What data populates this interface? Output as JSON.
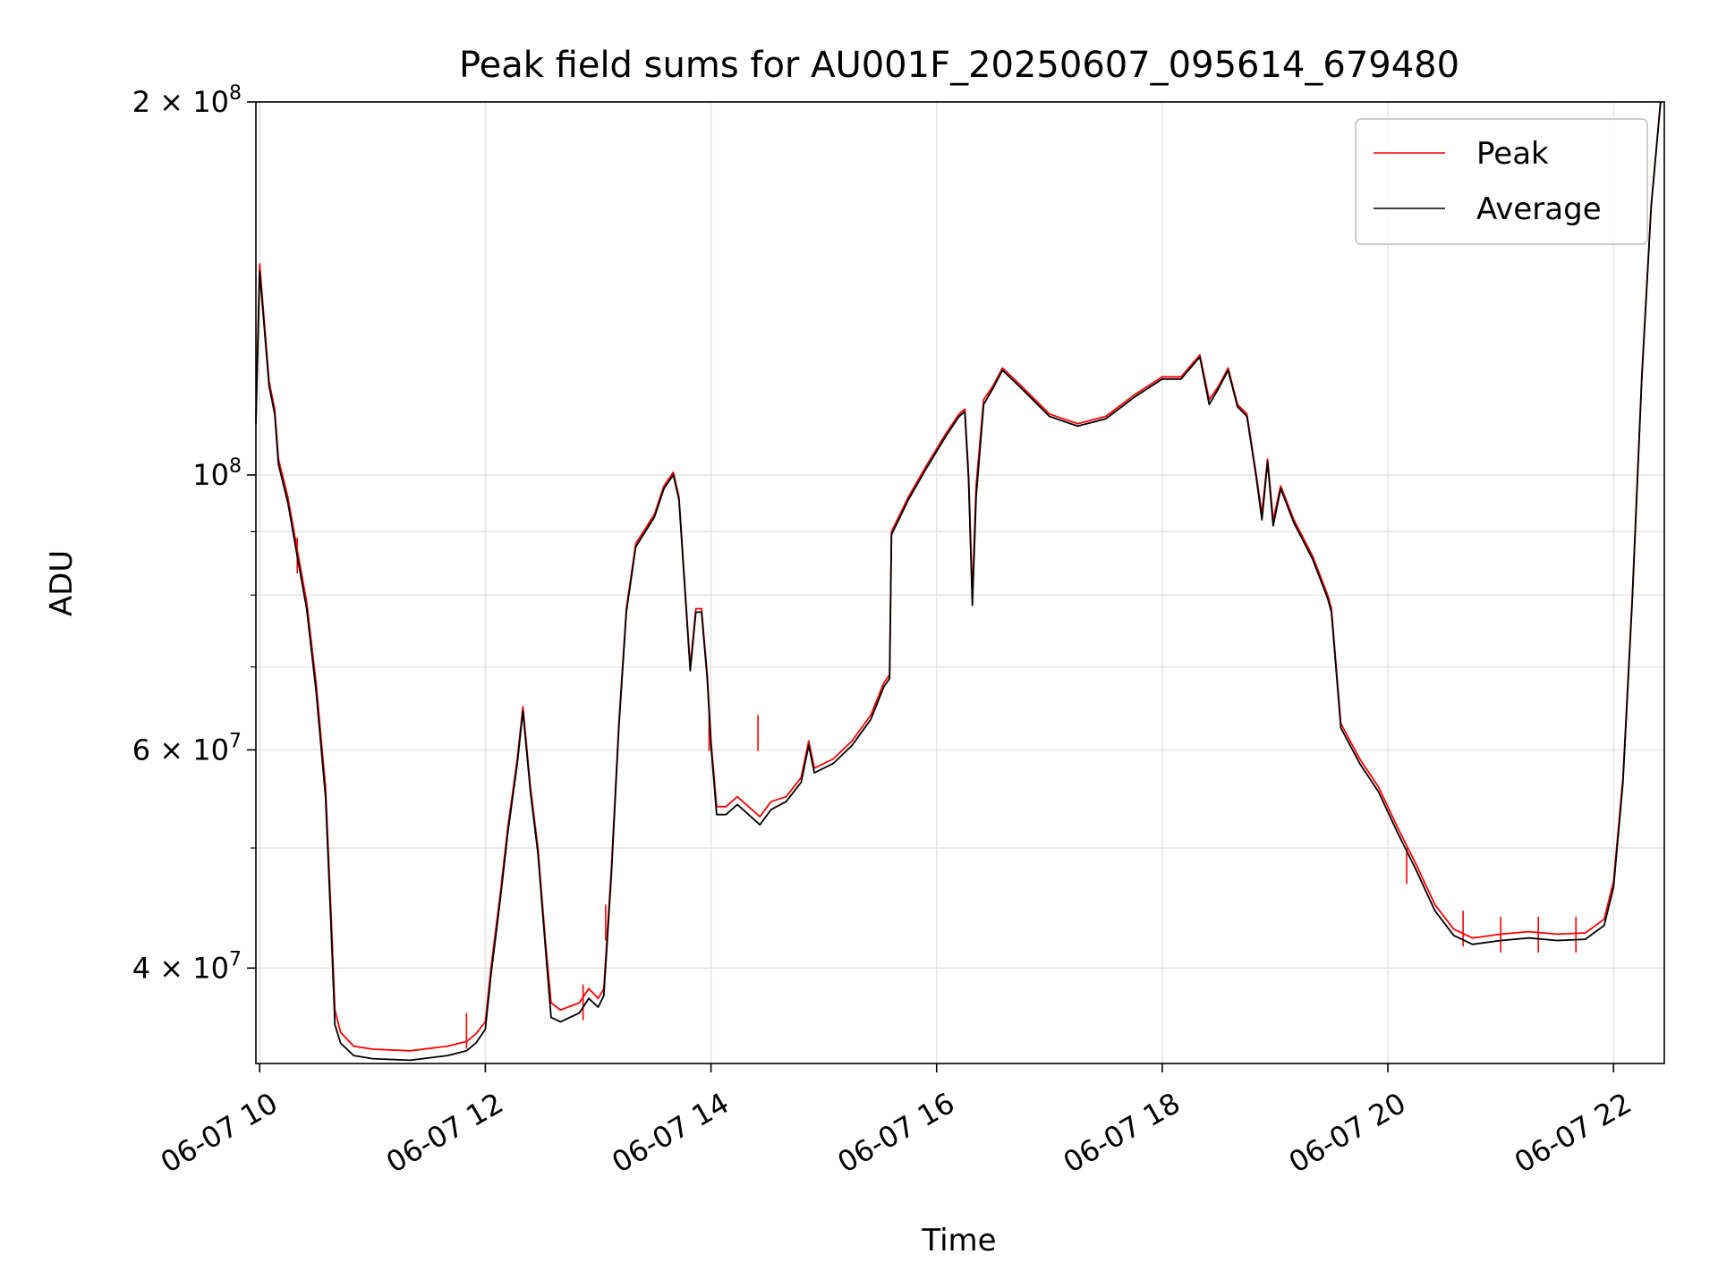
{
  "chart_data": {
    "type": "line",
    "title": "Peak field sums for AU001F_20250607_095614_679480",
    "xlabel": "Time",
    "ylabel": "ADU",
    "x_scale": "time",
    "y_scale": "log",
    "xlim": [
      "06-07 09:58",
      "06-07 22:27"
    ],
    "ylim": [
      33500000,
      200000000
    ],
    "grid": true,
    "legend_position": "top-right",
    "x_ticks": [
      {
        "time": "06-07 10:00",
        "label": "06-07 10"
      },
      {
        "time": "06-07 12:00",
        "label": "06-07 12"
      },
      {
        "time": "06-07 14:00",
        "label": "06-07 14"
      },
      {
        "time": "06-07 16:00",
        "label": "06-07 16"
      },
      {
        "time": "06-07 18:00",
        "label": "06-07 18"
      },
      {
        "time": "06-07 20:00",
        "label": "06-07 20"
      },
      {
        "time": "06-07 22:00",
        "label": "06-07 22"
      }
    ],
    "y_major_ticks": [
      {
        "value": 40000000,
        "mantissa": "4",
        "exp": "7"
      },
      {
        "value": 60000000,
        "mantissa": "6",
        "exp": "7"
      },
      {
        "value": 100000000,
        "mantissa": "",
        "exp": "8"
      },
      {
        "value": 200000000,
        "mantissa": "2",
        "exp": "8"
      }
    ],
    "y_minor_ticks": [
      50000000,
      70000000,
      80000000,
      90000000
    ],
    "series": [
      {
        "name": "Peak",
        "color": "#ff0000",
        "points": [
          [
            "06-07 09:58",
            111000000
          ],
          [
            "06-07 10:00",
            148000000
          ],
          [
            "06-07 10:05",
            119000000
          ],
          [
            "06-07 10:08",
            113000000
          ],
          [
            "06-07 10:10",
            103000000
          ],
          [
            "06-07 10:15",
            96000000
          ],
          [
            "06-07 10:20",
            87000000
          ],
          [
            "06-07 10:25",
            79000000
          ],
          [
            "06-07 10:30",
            68000000
          ],
          [
            "06-07 10:35",
            56000000
          ],
          [
            "06-07 10:38",
            44000000
          ],
          [
            "06-07 10:40",
            37000000
          ],
          [
            "06-07 10:43",
            35500000
          ],
          [
            "06-07 10:50",
            34600000
          ],
          [
            "06-07 11:00",
            34400000
          ],
          [
            "06-07 11:20",
            34300000
          ],
          [
            "06-07 11:40",
            34600000
          ],
          [
            "06-07 11:50",
            34900000
          ],
          [
            "06-07 11:55",
            35400000
          ],
          [
            "06-07 12:00",
            36200000
          ],
          [
            "06-07 12:03",
            40000000
          ],
          [
            "06-07 12:08",
            46000000
          ],
          [
            "06-07 12:12",
            52000000
          ],
          [
            "06-07 12:17",
            59000000
          ],
          [
            "06-07 12:20",
            65000000
          ],
          [
            "06-07 12:24",
            56000000
          ],
          [
            "06-07 12:28",
            50000000
          ],
          [
            "06-07 12:32",
            42000000
          ],
          [
            "06-07 12:35",
            37500000
          ],
          [
            "06-07 12:40",
            37000000
          ],
          [
            "06-07 12:50",
            37500000
          ],
          [
            "06-07 12:55",
            38500000
          ],
          [
            "06-07 13:00",
            37800000
          ],
          [
            "06-07 13:03",
            38500000
          ],
          [
            "06-07 13:07",
            48000000
          ],
          [
            "06-07 13:11",
            63000000
          ],
          [
            "06-07 13:15",
            78000000
          ],
          [
            "06-07 13:20",
            88000000
          ],
          [
            "06-07 13:30",
            93000000
          ],
          [
            "06-07 13:35",
            98000000
          ],
          [
            "06-07 13:40",
            100500000
          ],
          [
            "06-07 13:43",
            96000000
          ],
          [
            "06-07 13:46",
            82000000
          ],
          [
            "06-07 13:49",
            70000000
          ],
          [
            "06-07 13:52",
            78000000
          ],
          [
            "06-07 13:55",
            78000000
          ],
          [
            "06-07 13:58",
            69000000
          ],
          [
            "06-07 14:00",
            61000000
          ],
          [
            "06-07 14:03",
            54000000
          ],
          [
            "06-07 14:08",
            54000000
          ],
          [
            "06-07 14:14",
            55000000
          ],
          [
            "06-07 14:20",
            54000000
          ],
          [
            "06-07 14:26",
            53000000
          ],
          [
            "06-07 14:32",
            54500000
          ],
          [
            "06-07 14:40",
            55000000
          ],
          [
            "06-07 14:48",
            57000000
          ],
          [
            "06-07 14:52",
            61000000
          ],
          [
            "06-07 14:55",
            58000000
          ],
          [
            "06-07 15:05",
            59000000
          ],
          [
            "06-07 15:15",
            61000000
          ],
          [
            "06-07 15:25",
            64000000
          ],
          [
            "06-07 15:32",
            68000000
          ],
          [
            "06-07 15:35",
            69000000
          ],
          [
            "06-07 15:36",
            90000000
          ],
          [
            "06-07 15:45",
            96000000
          ],
          [
            "06-07 15:55",
            102000000
          ],
          [
            "06-07 16:05",
            108000000
          ],
          [
            "06-07 16:12",
            112000000
          ],
          [
            "06-07 16:15",
            113000000
          ],
          [
            "06-07 16:17",
            100000000
          ],
          [
            "06-07 16:19",
            80000000
          ],
          [
            "06-07 16:21",
            98000000
          ],
          [
            "06-07 16:25",
            115000000
          ],
          [
            "06-07 16:30",
            118000000
          ],
          [
            "06-07 16:35",
            122000000
          ],
          [
            "06-07 16:45",
            118000000
          ],
          [
            "06-07 17:00",
            112000000
          ],
          [
            "06-07 17:15",
            110000000
          ],
          [
            "06-07 17:30",
            111500000
          ],
          [
            "06-07 17:45",
            116000000
          ],
          [
            "06-07 18:00",
            120000000
          ],
          [
            "06-07 18:10",
            120000000
          ],
          [
            "06-07 18:20",
            125000000
          ],
          [
            "06-07 18:25",
            115000000
          ],
          [
            "06-07 18:30",
            118000000
          ],
          [
            "06-07 18:35",
            122000000
          ],
          [
            "06-07 18:40",
            114000000
          ],
          [
            "06-07 18:45",
            112000000
          ],
          [
            "06-07 18:50",
            100000000
          ],
          [
            "06-07 18:53",
            93000000
          ],
          [
            "06-07 18:56",
            103000000
          ],
          [
            "06-07 18:59",
            92000000
          ],
          [
            "06-07 19:03",
            98000000
          ],
          [
            "06-07 19:10",
            92000000
          ],
          [
            "06-07 19:20",
            86000000
          ],
          [
            "06-07 19:28",
            80000000
          ],
          [
            "06-07 19:30",
            78000000
          ],
          [
            "06-07 19:35",
            63000000
          ],
          [
            "06-07 19:45",
            59000000
          ],
          [
            "06-07 19:55",
            56000000
          ],
          [
            "06-07 20:05",
            52000000
          ],
          [
            "06-07 20:15",
            48500000
          ],
          [
            "06-07 20:25",
            45000000
          ],
          [
            "06-07 20:35",
            43000000
          ],
          [
            "06-07 20:45",
            42300000
          ],
          [
            "06-07 21:00",
            42600000
          ],
          [
            "06-07 21:15",
            42800000
          ],
          [
            "06-07 21:30",
            42600000
          ],
          [
            "06-07 21:45",
            42700000
          ],
          [
            "06-07 21:55",
            43800000
          ],
          [
            "06-07 22:00",
            47000000
          ],
          [
            "06-07 22:05",
            57000000
          ],
          [
            "06-07 22:10",
            80000000
          ],
          [
            "06-07 22:15",
            120000000
          ],
          [
            "06-07 22:20",
            165000000
          ],
          [
            "06-07 22:25",
            200000000
          ]
        ],
        "spikes": [
          [
            "06-07 10:20",
            89000000
          ],
          [
            "06-07 11:50",
            36800000
          ],
          [
            "06-07 12:52",
            38800000
          ],
          [
            "06-07 13:04",
            45000000
          ],
          [
            "06-07 13:59",
            64000000
          ],
          [
            "06-07 14:25",
            64000000
          ],
          [
            "06-07 20:10",
            50000000
          ],
          [
            "06-07 20:40",
            44500000
          ],
          [
            "06-07 21:00",
            44000000
          ],
          [
            "06-07 21:20",
            44000000
          ],
          [
            "06-07 21:40",
            44000000
          ]
        ]
      },
      {
        "name": "Average",
        "color": "#000000",
        "points": [
          [
            "06-07 09:58",
            110000000
          ],
          [
            "06-07 10:00",
            146000000
          ],
          [
            "06-07 10:05",
            118000000
          ],
          [
            "06-07 10:08",
            112000000
          ],
          [
            "06-07 10:10",
            102000000
          ],
          [
            "06-07 10:15",
            95000000
          ],
          [
            "06-07 10:20",
            86000000
          ],
          [
            "06-07 10:25",
            78000000
          ],
          [
            "06-07 10:30",
            67000000
          ],
          [
            "06-07 10:35",
            55000000
          ],
          [
            "06-07 10:38",
            43000000
          ],
          [
            "06-07 10:40",
            36000000
          ],
          [
            "06-07 10:43",
            34800000
          ],
          [
            "06-07 10:50",
            34000000
          ],
          [
            "06-07 11:00",
            33800000
          ],
          [
            "06-07 11:20",
            33700000
          ],
          [
            "06-07 11:40",
            34000000
          ],
          [
            "06-07 11:50",
            34300000
          ],
          [
            "06-07 11:55",
            34800000
          ],
          [
            "06-07 12:00",
            35700000
          ],
          [
            "06-07 12:03",
            39500000
          ],
          [
            "06-07 12:08",
            45500000
          ],
          [
            "06-07 12:12",
            51500000
          ],
          [
            "06-07 12:17",
            58500000
          ],
          [
            "06-07 12:20",
            64500000
          ],
          [
            "06-07 12:24",
            55500000
          ],
          [
            "06-07 12:28",
            49500000
          ],
          [
            "06-07 12:32",
            41500000
          ],
          [
            "06-07 12:35",
            36500000
          ],
          [
            "06-07 12:40",
            36200000
          ],
          [
            "06-07 12:50",
            36800000
          ],
          [
            "06-07 12:55",
            37800000
          ],
          [
            "06-07 13:00",
            37200000
          ],
          [
            "06-07 13:03",
            38000000
          ],
          [
            "06-07 13:07",
            47500000
          ],
          [
            "06-07 13:11",
            62500000
          ],
          [
            "06-07 13:15",
            77500000
          ],
          [
            "06-07 13:20",
            87500000
          ],
          [
            "06-07 13:30",
            92500000
          ],
          [
            "06-07 13:35",
            97500000
          ],
          [
            "06-07 13:40",
            100000000
          ],
          [
            "06-07 13:43",
            95500000
          ],
          [
            "06-07 13:46",
            81500000
          ],
          [
            "06-07 13:49",
            69500000
          ],
          [
            "06-07 13:52",
            77500000
          ],
          [
            "06-07 13:55",
            77500000
          ],
          [
            "06-07 13:58",
            68500000
          ],
          [
            "06-07 14:00",
            60500000
          ],
          [
            "06-07 14:03",
            53200000
          ],
          [
            "06-07 14:08",
            53200000
          ],
          [
            "06-07 14:14",
            54200000
          ],
          [
            "06-07 14:20",
            53200000
          ],
          [
            "06-07 14:26",
            52200000
          ],
          [
            "06-07 14:32",
            53700000
          ],
          [
            "06-07 14:40",
            54500000
          ],
          [
            "06-07 14:48",
            56500000
          ],
          [
            "06-07 14:52",
            60500000
          ],
          [
            "06-07 14:55",
            57500000
          ],
          [
            "06-07 15:05",
            58500000
          ],
          [
            "06-07 15:15",
            60500000
          ],
          [
            "06-07 15:25",
            63500000
          ],
          [
            "06-07 15:32",
            67500000
          ],
          [
            "06-07 15:35",
            68500000
          ],
          [
            "06-07 15:36",
            89500000
          ],
          [
            "06-07 15:45",
            95500000
          ],
          [
            "06-07 15:55",
            101500000
          ],
          [
            "06-07 16:05",
            107500000
          ],
          [
            "06-07 16:12",
            111500000
          ],
          [
            "06-07 16:15",
            112500000
          ],
          [
            "06-07 16:17",
            99000000
          ],
          [
            "06-07 16:19",
            78500000
          ],
          [
            "06-07 16:21",
            96000000
          ],
          [
            "06-07 16:25",
            114000000
          ],
          [
            "06-07 16:30",
            117500000
          ],
          [
            "06-07 16:35",
            121500000
          ],
          [
            "06-07 16:45",
            117500000
          ],
          [
            "06-07 17:00",
            111500000
          ],
          [
            "06-07 17:15",
            109500000
          ],
          [
            "06-07 17:30",
            111000000
          ],
          [
            "06-07 17:45",
            115500000
          ],
          [
            "06-07 18:00",
            119500000
          ],
          [
            "06-07 18:10",
            119500000
          ],
          [
            "06-07 18:20",
            124500000
          ],
          [
            "06-07 18:25",
            114000000
          ],
          [
            "06-07 18:30",
            117500000
          ],
          [
            "06-07 18:35",
            121500000
          ],
          [
            "06-07 18:40",
            113500000
          ],
          [
            "06-07 18:45",
            111500000
          ],
          [
            "06-07 18:50",
            99500000
          ],
          [
            "06-07 18:53",
            92000000
          ],
          [
            "06-07 18:56",
            102500000
          ],
          [
            "06-07 18:59",
            91000000
          ],
          [
            "06-07 19:03",
            97500000
          ],
          [
            "06-07 19:10",
            91500000
          ],
          [
            "06-07 19:20",
            85500000
          ],
          [
            "06-07 19:28",
            79500000
          ],
          [
            "06-07 19:30",
            77500000
          ],
          [
            "06-07 19:35",
            62500000
          ],
          [
            "06-07 19:45",
            58500000
          ],
          [
            "06-07 19:55",
            55500000
          ],
          [
            "06-07 20:05",
            51500000
          ],
          [
            "06-07 20:15",
            48000000
          ],
          [
            "06-07 20:25",
            44500000
          ],
          [
            "06-07 20:35",
            42500000
          ],
          [
            "06-07 20:45",
            41800000
          ],
          [
            "06-07 21:00",
            42100000
          ],
          [
            "06-07 21:15",
            42300000
          ],
          [
            "06-07 21:30",
            42100000
          ],
          [
            "06-07 21:45",
            42200000
          ],
          [
            "06-07 21:55",
            43300000
          ],
          [
            "06-07 22:00",
            46500000
          ],
          [
            "06-07 22:05",
            56500000
          ],
          [
            "06-07 22:10",
            79500000
          ],
          [
            "06-07 22:15",
            119500000
          ],
          [
            "06-07 22:20",
            164500000
          ],
          [
            "06-07 22:25",
            200000000
          ]
        ]
      }
    ]
  }
}
